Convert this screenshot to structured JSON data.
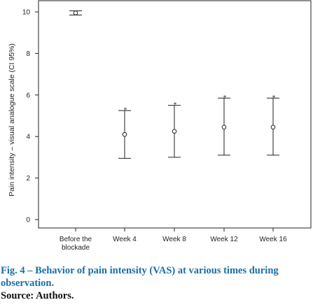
{
  "chart_data": {
    "type": "errorbar",
    "ylabel": "Pain intensity – visual analogue scale (CI 95%)",
    "ylim": [
      0,
      10
    ],
    "yticks": [
      0,
      2,
      4,
      6,
      8,
      10
    ],
    "categories": [
      "Before the blockade",
      "Week 4",
      "Week 8",
      "Week 12",
      "Week 16"
    ],
    "category_labels": [
      [
        "Before the",
        "blockade"
      ],
      [
        "Week 4"
      ],
      [
        "Week 8"
      ],
      [
        "Week 12"
      ],
      [
        "Week 16"
      ]
    ],
    "mean": [
      9.95,
      4.1,
      4.25,
      4.45,
      4.45
    ],
    "ci_lower": [
      9.85,
      2.95,
      3.0,
      3.1,
      3.1
    ],
    "ci_upper": [
      10.05,
      5.25,
      5.5,
      5.85,
      5.85
    ],
    "upper_marker": [
      false,
      true,
      true,
      true,
      true
    ]
  },
  "caption": {
    "fig_label": "Fig. 4 –",
    "title": "Behavior of pain intensity (VAS) at various times during observation.",
    "source": "Source: Authors."
  }
}
